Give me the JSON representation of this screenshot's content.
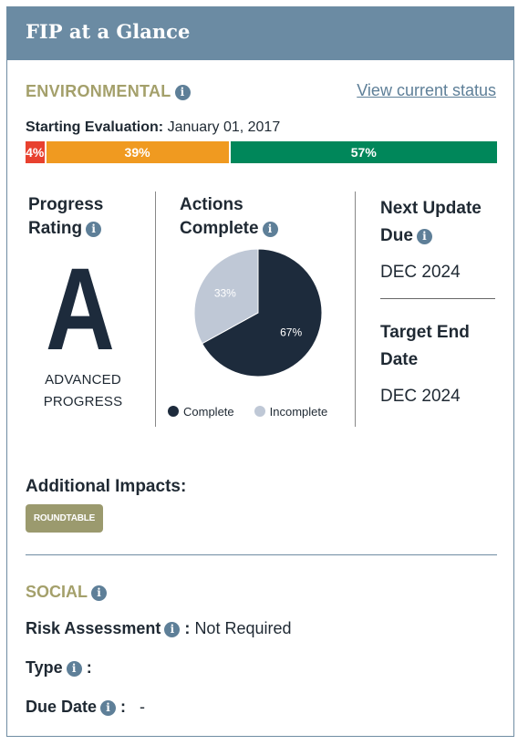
{
  "header": {
    "title": "FIP at a Glance"
  },
  "environmental": {
    "title": "ENVIRONMENTAL",
    "view_link": "View current status",
    "starting_eval_label": "Starting Evaluation:",
    "starting_eval_date": "January 01, 2017",
    "bar": [
      {
        "label": "4%",
        "value": 4,
        "color": "#e8412f"
      },
      {
        "label": "39%",
        "value": 39,
        "color": "#f09a20"
      },
      {
        "label": "57%",
        "value": 57,
        "color": "#00875a"
      }
    ],
    "progress": {
      "heading_line1": "Progress",
      "heading_line2": "Rating",
      "grade": "A",
      "grade_line1": "ADVANCED",
      "grade_line2": "PROGRESS"
    },
    "actions": {
      "heading_line1": "Actions",
      "heading_line2": "Complete",
      "legend_complete": "Complete",
      "legend_incomplete": "Incomplete",
      "complete_color": "#1d2b3c",
      "incomplete_color": "#bfc8d6"
    },
    "next_update": {
      "heading_line1": "Next Update",
      "heading_line2": "Due",
      "value": "DEC 2024"
    },
    "target_end": {
      "heading_line1": "Target End",
      "heading_line2": "Date",
      "value": "DEC 2024"
    }
  },
  "chart_data": {
    "type": "pie",
    "categories": [
      "Complete",
      "Incomplete"
    ],
    "values": [
      67,
      33
    ],
    "labels": [
      "67%",
      "33%"
    ]
  },
  "additional_impacts": {
    "title": "Additional Impacts:",
    "tags": [
      "ROUNDTABLE"
    ]
  },
  "social": {
    "title": "SOCIAL",
    "risk_label": "Risk Assessment",
    "risk_sep": ":",
    "risk_value": "Not Required",
    "type_label": "Type",
    "type_sep": ":",
    "due_label": "Due Date",
    "due_sep": ":",
    "due_value": "-"
  },
  "icons": {
    "info": "info-icon"
  }
}
